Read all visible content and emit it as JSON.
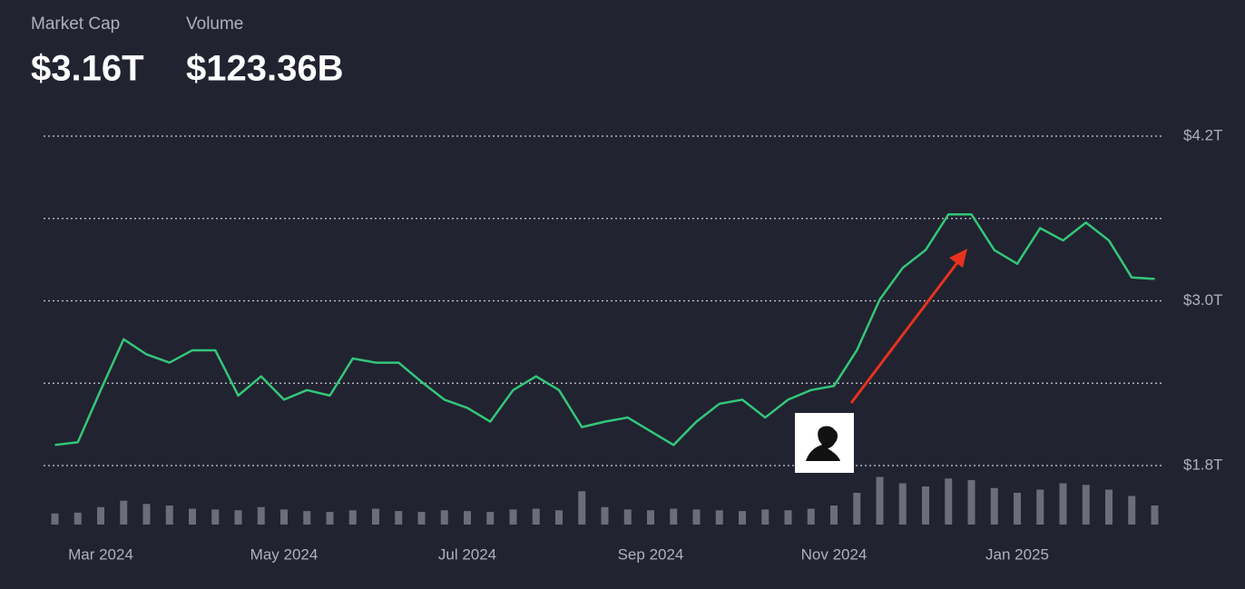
{
  "chart_data": {
    "type": "line",
    "categories": [
      null,
      null,
      "Mar 2024",
      null,
      null,
      null,
      null,
      null,
      null,
      null,
      "May 2024",
      null,
      null,
      null,
      null,
      null,
      null,
      null,
      "Jul 2024",
      null,
      null,
      null,
      null,
      null,
      null,
      null,
      "Sep 2024",
      null,
      null,
      null,
      null,
      null,
      null,
      null,
      "Nov 2024",
      null,
      null,
      null,
      null,
      null,
      null,
      null,
      "Jan 2025",
      null,
      null,
      null,
      null,
      null,
      null
    ],
    "series": [
      {
        "name": "Market Cap",
        "current": "$3.16T",
        "color": "#34c67a",
        "values": [
          1.95,
          1.97,
          2.35,
          2.72,
          2.61,
          2.55,
          2.64,
          2.64,
          2.31,
          2.45,
          2.28,
          2.35,
          2.31,
          2.58,
          2.55,
          2.55,
          2.41,
          2.28,
          2.22,
          2.12,
          2.35,
          2.45,
          2.35,
          2.08,
          2.12,
          2.15,
          2.05,
          1.95,
          2.12,
          2.25,
          2.28,
          2.15,
          2.28,
          2.35,
          2.38,
          2.64,
          3.01,
          3.24,
          3.37,
          3.63,
          3.63,
          3.37,
          3.27,
          3.53,
          3.44,
          3.57,
          3.44,
          3.17,
          3.16
        ]
      },
      {
        "name": "Volume",
        "current": "$123.36B",
        "color": "#6b6d7a",
        "axis": "y2",
        "values": [
          70,
          75,
          110,
          150,
          130,
          120,
          100,
          95,
          90,
          110,
          95,
          85,
          80,
          90,
          100,
          85,
          80,
          90,
          85,
          80,
          95,
          100,
          90,
          210,
          110,
          95,
          90,
          100,
          95,
          90,
          85,
          95,
          90,
          100,
          120,
          200,
          300,
          260,
          240,
          290,
          280,
          230,
          200,
          220,
          260,
          250,
          220,
          180,
          120
        ]
      }
    ],
    "ylim": [
      1.8,
      4.2
    ],
    "yticks": [
      {
        "value": 1.8,
        "label": "$1.8T"
      },
      {
        "value": 2.4,
        "label": null
      },
      {
        "value": 3.0,
        "label": "$3.0T"
      },
      {
        "value": 3.6,
        "label": null
      },
      {
        "value": 4.2,
        "label": "$4.2T"
      }
    ],
    "y2lim": [
      0,
      400
    ],
    "grid": true
  }
}
